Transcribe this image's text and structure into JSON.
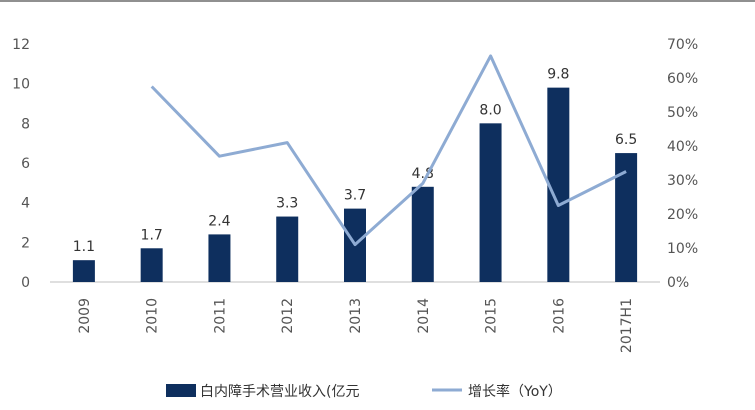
{
  "chart_data": {
    "type": "bar",
    "categories": [
      "2009",
      "2010",
      "2011",
      "2012",
      "2013",
      "2014",
      "2015",
      "2016",
      "2017H1"
    ],
    "series": [
      {
        "name": "白内障手术营业收入(亿元",
        "type": "bar",
        "axis": "left",
        "values": [
          1.1,
          1.7,
          2.4,
          3.3,
          3.7,
          4.8,
          8.0,
          9.8,
          6.5
        ],
        "labels": [
          "1.1",
          "1.7",
          "2.4",
          "3.3",
          "3.7",
          "4.8",
          "8.0",
          "9.8",
          "6.5"
        ],
        "color": "#0e2f5e"
      },
      {
        "name": "增长率（YoY）",
        "type": "line",
        "axis": "right",
        "values": [
          null,
          0.575,
          0.37,
          0.41,
          0.11,
          0.29,
          0.665,
          0.225,
          0.325
        ],
        "color": "#8eabd3"
      }
    ],
    "ylim_left": [
      0,
      12
    ],
    "yticks_left": [
      "0",
      "2",
      "4",
      "6",
      "8",
      "10",
      "12"
    ],
    "ylim_right": [
      0,
      0.7
    ],
    "yticks_right": [
      "0%",
      "10%",
      "20%",
      "30%",
      "40%",
      "50%",
      "60%",
      "70%"
    ],
    "legend_position": "bottom",
    "grid": false
  }
}
